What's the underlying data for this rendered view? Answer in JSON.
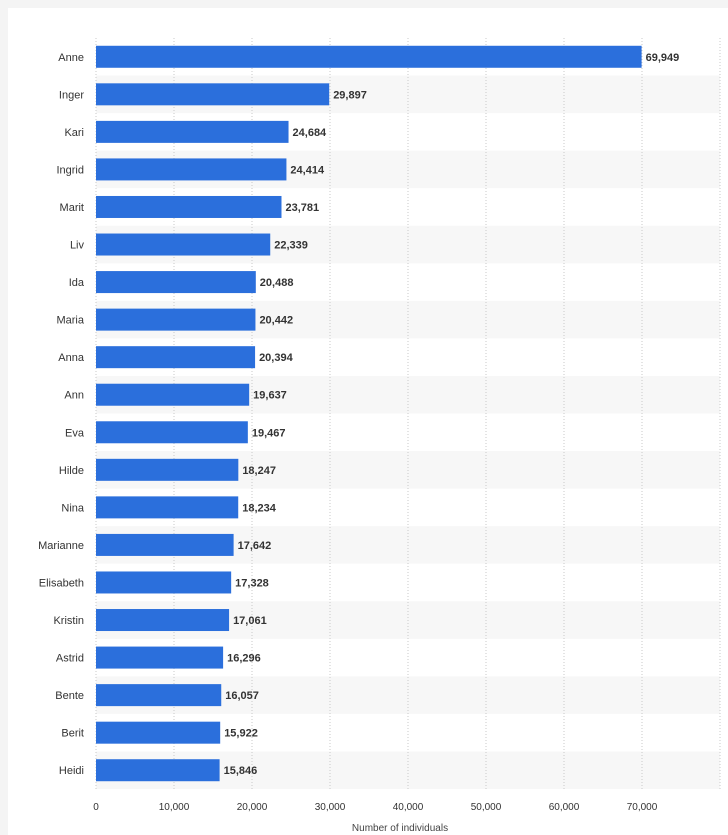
{
  "chart_data": {
    "type": "bar",
    "orientation": "horizontal",
    "categories": [
      "Anne",
      "Inger",
      "Kari",
      "Ingrid",
      "Marit",
      "Liv",
      "Ida",
      "Maria",
      "Anna",
      "Ann",
      "Eva",
      "Hilde",
      "Nina",
      "Marianne",
      "Elisabeth",
      "Kristin",
      "Astrid",
      "Bente",
      "Berit",
      "Heidi"
    ],
    "values": [
      69949,
      29897,
      24684,
      24414,
      23781,
      22339,
      20488,
      20442,
      20394,
      19637,
      19467,
      18247,
      18234,
      17642,
      17328,
      17061,
      16296,
      16057,
      15922,
      15846
    ],
    "value_labels": [
      "69,949",
      "29,897",
      "24,684",
      "24,414",
      "23,781",
      "22,339",
      "20,488",
      "20,442",
      "20,394",
      "19,637",
      "19,467",
      "18,247",
      "18,234",
      "17,642",
      "17,328",
      "17,061",
      "16,296",
      "16,057",
      "15,922",
      "15,846"
    ],
    "xticks": [
      0,
      10000,
      20000,
      30000,
      40000,
      50000,
      60000,
      70000
    ],
    "xtick_labels": [
      "0",
      "10,000",
      "20,000",
      "30,000",
      "40,000",
      "50,000",
      "60,000",
      "70,000"
    ],
    "xlim": [
      0,
      80000
    ],
    "xlabel": "Number of individuals",
    "ylabel": "",
    "title": "",
    "grid": "vertical dotted",
    "legend": "none",
    "bar_color": "#2b6fdc",
    "band_color": "#f7f7f7"
  }
}
